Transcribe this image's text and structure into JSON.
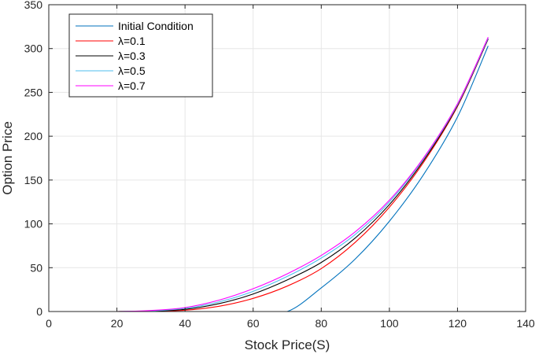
{
  "chart_data": {
    "type": "line",
    "title": "",
    "xlabel": "Stock Price(S)",
    "ylabel": "Option Price",
    "xlim": [
      0,
      140
    ],
    "ylim": [
      0,
      350
    ],
    "xticks": [
      0,
      20,
      40,
      60,
      80,
      100,
      120,
      140
    ],
    "yticks": [
      0,
      50,
      100,
      150,
      200,
      250,
      300,
      350
    ],
    "grid": true,
    "legend_position": "top-left",
    "series": [
      {
        "name": "Initial Condition",
        "color": "#0072BD",
        "x": [
          0,
          20,
          40,
          60,
          70,
          80,
          90,
          100,
          110,
          120,
          129
        ],
        "y": [
          0,
          0,
          0,
          0,
          0,
          27,
          60,
          103,
          156,
          222,
          303
        ]
      },
      {
        "name": "λ=0.1",
        "color": "#FF0000",
        "x": [
          0,
          20,
          30,
          40,
          50,
          60,
          70,
          80,
          90,
          100,
          110,
          120,
          129
        ],
        "y": [
          0,
          0,
          0.3,
          1.5,
          6,
          15,
          29,
          49,
          79,
          119,
          170,
          234,
          311
        ]
      },
      {
        "name": "λ=0.3",
        "color": "#000000",
        "x": [
          0,
          20,
          30,
          40,
          50,
          60,
          70,
          80,
          90,
          100,
          110,
          120,
          129
        ],
        "y": [
          0,
          0,
          0.5,
          2.5,
          9,
          20,
          36,
          56,
          84,
          122,
          172,
          235,
          311
        ]
      },
      {
        "name": "λ=0.5",
        "color": "#4DBEEE",
        "x": [
          0,
          20,
          30,
          40,
          50,
          60,
          70,
          80,
          90,
          100,
          110,
          120,
          129
        ],
        "y": [
          0,
          0,
          0.8,
          3.5,
          11,
          23,
          40,
          61,
          88,
          125,
          174,
          236,
          312
        ]
      },
      {
        "name": "λ=0.7",
        "color": "#FF00FF",
        "x": [
          0,
          20,
          30,
          40,
          50,
          60,
          70,
          80,
          90,
          100,
          110,
          120,
          129
        ],
        "y": [
          0,
          0,
          1.2,
          4.5,
          13,
          26,
          43,
          64,
          91,
          127,
          175,
          237,
          313
        ]
      }
    ]
  }
}
